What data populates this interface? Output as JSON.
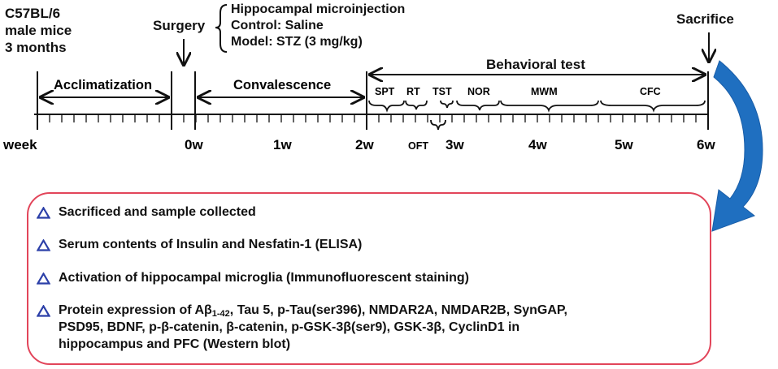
{
  "subject": {
    "line1": "C57BL/6",
    "line2": "male mice",
    "line3": "3 months"
  },
  "surgery_label": "Surgery",
  "microinjection": {
    "title": "Hippocampal microinjection",
    "control": "Control: Saline",
    "model": "Model: STZ (3 mg/kg)"
  },
  "sacrifice_label": "Sacrifice",
  "behavioral_test_label": "Behavioral test",
  "phases": {
    "acclimatization": "Acclimatization",
    "convalescence": "Convalescence"
  },
  "tests": {
    "spt": "SPT",
    "rt": "RT",
    "tst": "TST",
    "nor": "NOR",
    "mwm": "MWM",
    "cfc": "CFC",
    "oft": "OFT"
  },
  "axis": {
    "week_label": "week",
    "ticks": [
      "0w",
      "1w",
      "2w",
      "3w",
      "4w",
      "5w",
      "6w"
    ]
  },
  "results": [
    "Sacrificed and sample collected",
    "Serum contents of Insulin and Nesfatin-1 (ELISA)",
    "Activation of hippocampal microglia (Immunofluorescent staining)"
  ],
  "protein": {
    "prefix": "Protein expression of Aβ",
    "subscript": "1-42",
    "line1_rest": ", Tau 5, p-Tau(ser396), NMDAR2A, NMDAR2B, SynGAP,",
    "line2": "PSD95, BDNF,  p-β-catenin, β-catenin, p-GSK-3β(ser9), GSK-3β, CyclinD1 in",
    "line3": "hippocampus and PFC (Western blot)"
  },
  "colors": {
    "results_border": "#e2455a",
    "triangle_icon": "#2b3fa8",
    "curved_arrow": "#1f6fc0"
  }
}
